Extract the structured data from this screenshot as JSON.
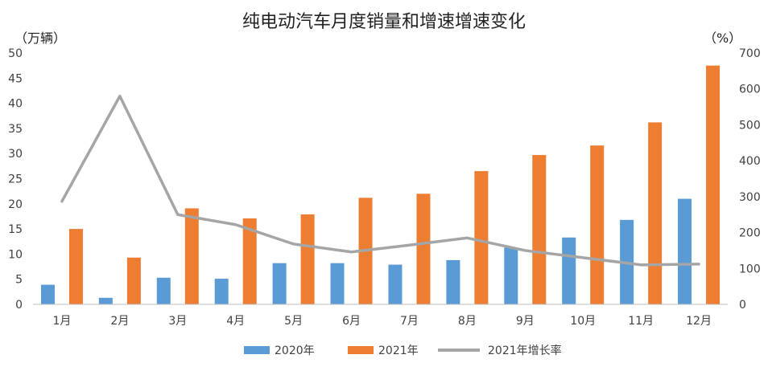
{
  "chart_data": {
    "type": "bar",
    "title": "纯电动汽车月度销量和增速增速变化",
    "ylabel": "（万辆）",
    "y2label": "（%）",
    "categories": [
      "1月",
      "2月",
      "3月",
      "4月",
      "5月",
      "6月",
      "7月",
      "8月",
      "9月",
      "10月",
      "11月",
      "12月"
    ],
    "ylim": [
      0,
      50
    ],
    "yticks": [
      0,
      5,
      10,
      15,
      20,
      25,
      30,
      35,
      40,
      45,
      50
    ],
    "y2lim": [
      0,
      700
    ],
    "y2ticks": [
      0,
      100,
      200,
      300,
      400,
      500,
      600,
      700
    ],
    "series": [
      {
        "name": "2020年",
        "type": "bar",
        "axis": "left",
        "color": "#5B9BD5",
        "values": [
          3.9,
          1.3,
          5.3,
          5.1,
          8.2,
          8.2,
          7.9,
          8.8,
          11.3,
          13.3,
          16.8,
          21.0
        ]
      },
      {
        "name": "2021年",
        "type": "bar",
        "axis": "left",
        "color": "#ED7D31",
        "values": [
          15.0,
          9.3,
          19.1,
          17.1,
          17.9,
          21.2,
          22.0,
          26.5,
          29.7,
          31.6,
          36.2,
          47.5
        ]
      },
      {
        "name": "2021年增长率",
        "type": "line",
        "axis": "right",
        "color": "#A5A5A5",
        "values": [
          287,
          580,
          250,
          222,
          168,
          146,
          165,
          185,
          150,
          130,
          110,
          112
        ]
      }
    ]
  }
}
